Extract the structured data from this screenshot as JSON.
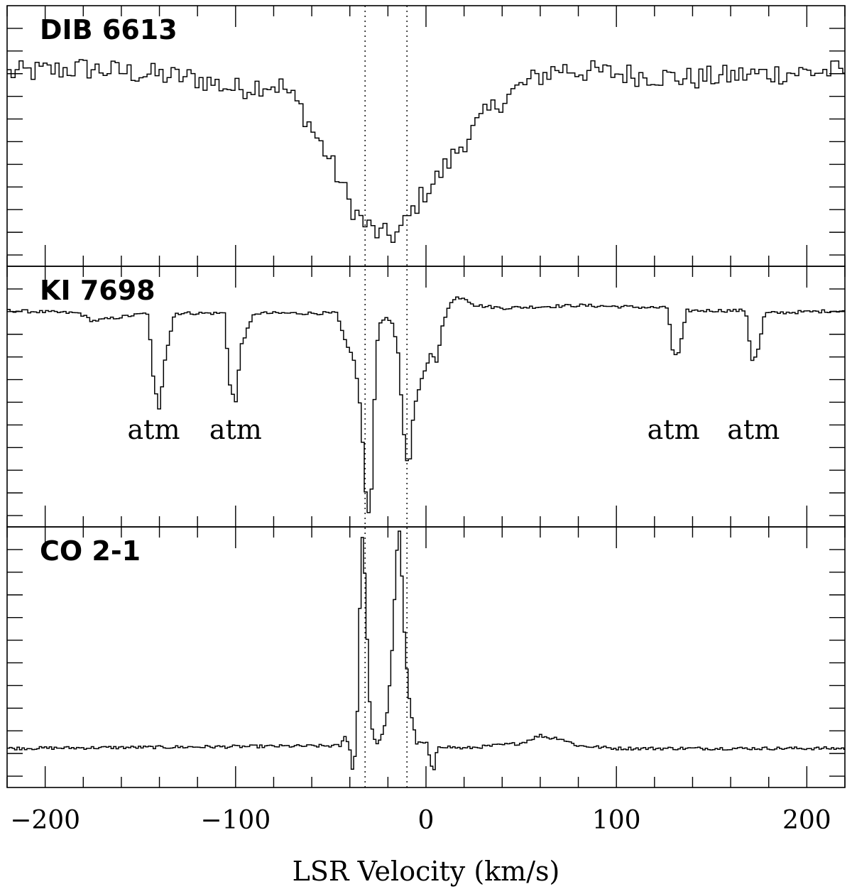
{
  "chart_data": {
    "type": "line",
    "style": "step",
    "xlabel": "LSR Velocity (km/s)",
    "xlim": [
      -220,
      220
    ],
    "x_ticks": [
      -200,
      -100,
      0,
      100,
      200
    ],
    "x_tick_labels": [
      "−200",
      "−100",
      "0",
      "100",
      "200"
    ],
    "reference_lines_x": [
      -32,
      -10
    ],
    "panels": [
      {
        "label": "DIB 6613",
        "ylim": [
          0,
          1
        ],
        "series": {
          "x": [
            -220,
            -180,
            -120,
            -100,
            -85,
            -75,
            -65,
            -58,
            -52,
            -48,
            -44,
            -40,
            -36,
            -32,
            -28,
            -24,
            -20,
            -16,
            -12,
            -8,
            -4,
            0,
            5,
            10,
            20,
            30,
            40,
            50,
            60,
            70,
            80,
            100,
            140,
            180,
            220
          ],
          "y": [
            0.74,
            0.76,
            0.72,
            0.68,
            0.7,
            0.69,
            0.6,
            0.5,
            0.43,
            0.37,
            0.31,
            0.24,
            0.2,
            0.16,
            0.14,
            0.12,
            0.12,
            0.12,
            0.15,
            0.2,
            0.25,
            0.29,
            0.33,
            0.38,
            0.48,
            0.57,
            0.64,
            0.69,
            0.73,
            0.76,
            0.75,
            0.74,
            0.72,
            0.74,
            0.75
          ]
        },
        "annotations": []
      },
      {
        "label": "KI 7698",
        "ylim": [
          0,
          1
        ],
        "series": {
          "x": [
            -220,
            -182,
            -175,
            -146,
            -143,
            -140,
            -137,
            -132,
            -106,
            -103,
            -100,
            -97,
            -90,
            -47,
            -42,
            -38,
            -35,
            -33,
            -31,
            -29,
            -27,
            -25,
            -22,
            -18,
            -15,
            -13,
            -11,
            -9,
            -7,
            -5,
            0,
            3,
            6,
            8,
            12,
            16,
            20,
            26,
            40,
            80,
            127,
            130,
            133,
            137,
            168,
            171,
            174,
            178,
            220
          ],
          "y": [
            0.83,
            0.82,
            0.79,
            0.82,
            0.55,
            0.45,
            0.65,
            0.82,
            0.82,
            0.55,
            0.47,
            0.7,
            0.82,
            0.82,
            0.7,
            0.65,
            0.5,
            0.3,
            0.05,
            0.05,
            0.5,
            0.78,
            0.8,
            0.79,
            0.7,
            0.5,
            0.3,
            0.2,
            0.4,
            0.5,
            0.62,
            0.67,
            0.62,
            0.76,
            0.85,
            0.88,
            0.88,
            0.85,
            0.84,
            0.85,
            0.84,
            0.65,
            0.67,
            0.83,
            0.83,
            0.64,
            0.66,
            0.82,
            0.83
          ]
        },
        "annotations": [
          {
            "text": "atm",
            "x": -143
          },
          {
            "text": "atm",
            "x": -100
          },
          {
            "text": "atm",
            "x": 130
          },
          {
            "text": "atm",
            "x": 172
          }
        ]
      },
      {
        "label": "CO 2-1",
        "ylim": [
          0,
          1
        ],
        "series": {
          "x": [
            -220,
            -45,
            -42,
            -40,
            -38,
            -36,
            -35,
            -34,
            -33,
            -32,
            -31,
            -30,
            -29,
            -27,
            -25,
            -23,
            -20,
            -18,
            -16,
            -15,
            -14,
            -13,
            -12,
            -11,
            -10,
            -9,
            -7,
            -5,
            -3,
            1,
            2,
            4,
            6,
            20,
            50,
            60,
            65,
            70,
            80,
            100,
            220
          ],
          "y": [
            0.15,
            0.16,
            0.2,
            0.15,
            0.03,
            0.3,
            0.6,
            0.97,
            0.95,
            0.8,
            0.6,
            0.4,
            0.25,
            0.18,
            0.17,
            0.2,
            0.3,
            0.5,
            0.8,
            0.95,
            0.99,
            0.9,
            0.65,
            0.57,
            0.45,
            0.35,
            0.25,
            0.17,
            0.17,
            0.17,
            0.1,
            0.05,
            0.16,
            0.15,
            0.17,
            0.2,
            0.19,
            0.19,
            0.16,
            0.15,
            0.15
          ]
        },
        "annotations": []
      }
    ]
  }
}
